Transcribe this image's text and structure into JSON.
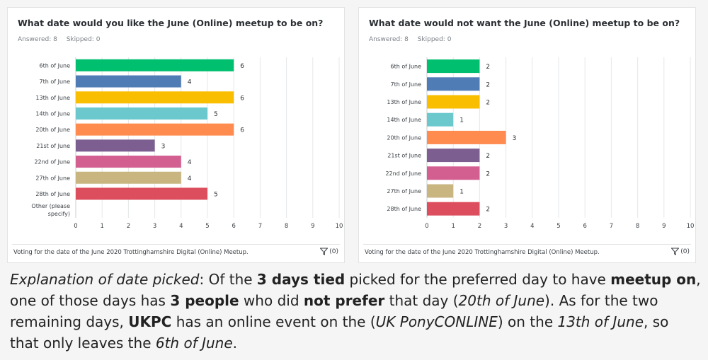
{
  "chart_data": [
    {
      "type": "bar",
      "orientation": "horizontal",
      "title": "What date would you like the June (Online) meetup to be on?",
      "answered": "Answered: 8",
      "skipped": "Skipped: 0",
      "categories": [
        "6th of June",
        "7th of June",
        "13th of June",
        "14th of June",
        "20th of June",
        "21st of June",
        "22nd of June",
        "27th of June",
        "28th of June",
        "Other (please specify)"
      ],
      "category_lines": [
        [
          "6th of June"
        ],
        [
          "7th of June"
        ],
        [
          "13th of June"
        ],
        [
          "14th of June"
        ],
        [
          "20th of June"
        ],
        [
          "21st of June"
        ],
        [
          "22nd of June"
        ],
        [
          "27th of June"
        ],
        [
          "28th of June"
        ],
        [
          "Other (please",
          "specify)"
        ]
      ],
      "values": [
        6,
        4,
        6,
        5,
        6,
        3,
        4,
        4,
        5,
        0
      ],
      "labels": [
        "6",
        "4",
        "6",
        "5",
        "6",
        "3",
        "4",
        "4",
        "5",
        ""
      ],
      "xlim": [
        0,
        10
      ],
      "ticks": [
        0,
        1,
        2,
        3,
        4,
        5,
        6,
        7,
        8,
        9,
        10
      ],
      "grid": true,
      "footer": "Voting for the date of the June 2020 Trottinghamshire Digital (Online) Meetup.",
      "filter_count": "(0)"
    },
    {
      "type": "bar",
      "orientation": "horizontal",
      "title": "What date would not want the June (Online) meetup to be on?",
      "answered": "Answered: 8",
      "skipped": "Skipped: 0",
      "categories": [
        "6th of June",
        "7th of June",
        "13th of June",
        "14th of June",
        "20th of June",
        "21st of June",
        "22nd of June",
        "27th of June",
        "28th of June"
      ],
      "category_lines": [
        [
          "6th of June"
        ],
        [
          "7th of June"
        ],
        [
          "13th of June"
        ],
        [
          "14th of June"
        ],
        [
          "20th of June"
        ],
        [
          "21st of June"
        ],
        [
          "22nd of June"
        ],
        [
          "27th of June"
        ],
        [
          "28th of June"
        ]
      ],
      "values": [
        2,
        2,
        2,
        1,
        3,
        2,
        2,
        1,
        2
      ],
      "labels": [
        "2",
        "2",
        "2",
        "1",
        "3",
        "2",
        "2",
        "1",
        "2"
      ],
      "xlim": [
        0,
        10
      ],
      "ticks": [
        0,
        1,
        2,
        3,
        4,
        5,
        6,
        7,
        8,
        9,
        10
      ],
      "grid": true,
      "footer": "Voting for the date of the June 2020 Trottinghamshire Digital (Online) Meetup.",
      "filter_count": "(0)"
    }
  ],
  "bar_colors": [
    "#00bf6f",
    "#507cb6",
    "#f9be00",
    "#6bc8cd",
    "#ff8b4f",
    "#7d5e90",
    "#d25f90",
    "#c8b580",
    "#dc4e5d",
    "#9aa0a6"
  ],
  "explanation": {
    "p1": "Explanation of date picked",
    "p2": ": Of the ",
    "p3": "3 days tied",
    "p4": " picked for the preferred day to have ",
    "p5": "meetup on",
    "p6": ", one of those days has ",
    "p7": "3 people",
    "p8": " who did ",
    "p9": "not prefer",
    "p10": " that day (",
    "p11": "20th of June",
    "p12": "). As for the two remaining days, ",
    "p13": "UKPC",
    "p14": " has an online event on the (",
    "p15": "UK PonyCONLINE",
    "p16": ") on the ",
    "p17": "13th of June",
    "p18": ", so that only leaves the ",
    "p19": "6th of June",
    "p20": "."
  }
}
